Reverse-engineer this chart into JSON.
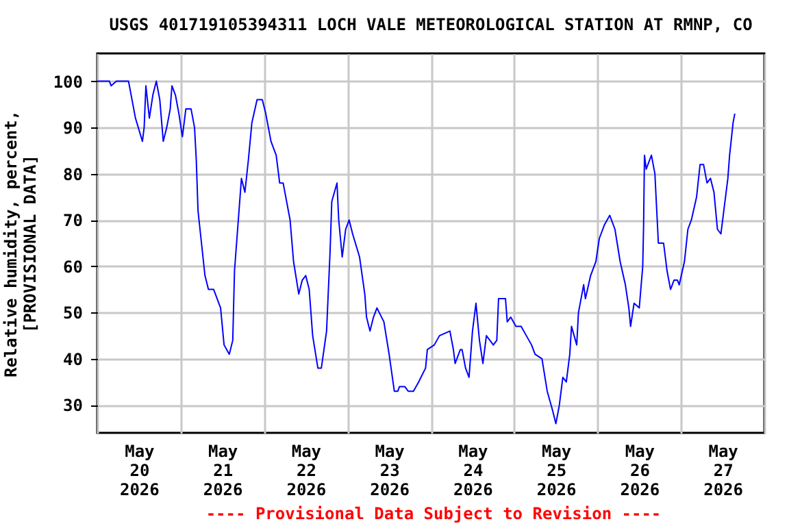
{
  "chart_data": {
    "type": "line",
    "title": "USGS 401719105394311 LOCH VALE METEOROLOGICAL STATION AT RMNP, CO",
    "ylabel": "Relative humidity, percent,\n[PROVISIONAL DATA]",
    "annotations": [
      "---- Provisional Data Subject to Revision ----"
    ],
    "xlim": [
      "2026-05-20T00:00",
      "2026-05-28T00:00"
    ],
    "xticks": [
      {
        "value": "2026-05-20T00:00",
        "label": null
      },
      {
        "value": "2026-05-20T12:00",
        "label": "May\n20\n2026"
      },
      {
        "value": "2026-05-21T00:00",
        "label": null
      },
      {
        "value": "2026-05-21T12:00",
        "label": "May\n21\n2026"
      },
      {
        "value": "2026-05-22T00:00",
        "label": null
      },
      {
        "value": "2026-05-22T12:00",
        "label": "May\n22\n2026"
      },
      {
        "value": "2026-05-23T00:00",
        "label": null
      },
      {
        "value": "2026-05-23T12:00",
        "label": "May\n23\n2026"
      },
      {
        "value": "2026-05-24T00:00",
        "label": null
      },
      {
        "value": "2026-05-24T12:00",
        "label": "May\n24\n2026"
      },
      {
        "value": "2026-05-25T00:00",
        "label": null
      },
      {
        "value": "2026-05-25T12:00",
        "label": "May\n25\n2026"
      },
      {
        "value": "2026-05-26T00:00",
        "label": null
      },
      {
        "value": "2026-05-26T12:00",
        "label": "May\n26\n2026"
      },
      {
        "value": "2026-05-27T00:00",
        "label": null
      },
      {
        "value": "2026-05-27T12:00",
        "label": "May\n27\n2026"
      },
      {
        "value": "2026-05-28T00:00",
        "label": null
      }
    ],
    "ylim": [
      24,
      106
    ],
    "yticks": [
      30,
      40,
      50,
      60,
      70,
      80,
      90,
      100
    ],
    "grid": true,
    "marker": "none",
    "line_style": "solid",
    "series": [
      {
        "color": "#0000ff",
        "x": [
          "2026-05-20T00:00",
          "2026-05-20T03:30",
          "2026-05-20T04:00",
          "2026-05-20T05:30",
          "2026-05-20T07:30",
          "2026-05-20T09:00",
          "2026-05-20T10:00",
          "2026-05-20T11:00",
          "2026-05-20T13:00",
          "2026-05-20T13:30",
          "2026-05-20T14:00",
          "2026-05-20T15:00",
          "2026-05-20T16:00",
          "2026-05-20T17:00",
          "2026-05-20T18:00",
          "2026-05-20T19:00",
          "2026-05-20T20:00",
          "2026-05-20T21:00",
          "2026-05-20T21:30",
          "2026-05-20T22:30",
          "2026-05-20T23:30",
          "2026-05-21T00:30",
          "2026-05-21T01:30",
          "2026-05-21T03:00",
          "2026-05-21T04:00",
          "2026-05-21T04:30",
          "2026-05-21T05:00",
          "2026-05-21T06:00",
          "2026-05-21T07:00",
          "2026-05-21T08:00",
          "2026-05-21T09:30",
          "2026-05-21T11:30",
          "2026-05-21T12:30",
          "2026-05-21T14:00",
          "2026-05-21T15:00",
          "2026-05-21T15:30",
          "2026-05-21T17:00",
          "2026-05-21T17:30",
          "2026-05-21T18:30",
          "2026-05-21T19:30",
          "2026-05-21T20:30",
          "2026-05-21T22:00",
          "2026-05-21T23:30",
          "2026-05-22T00:30",
          "2026-05-22T02:00",
          "2026-05-22T03:30",
          "2026-05-22T04:30",
          "2026-05-22T05:30",
          "2026-05-22T07:30",
          "2026-05-22T08:30",
          "2026-05-22T10:00",
          "2026-05-22T11:00",
          "2026-05-22T12:00",
          "2026-05-22T13:00",
          "2026-05-22T14:00",
          "2026-05-22T15:30",
          "2026-05-22T16:30",
          "2026-05-22T18:00",
          "2026-05-22T19:00",
          "2026-05-22T19:30",
          "2026-05-22T21:00",
          "2026-05-22T21:30",
          "2026-05-22T22:30",
          "2026-05-22T23:30",
          "2026-05-23T00:30",
          "2026-05-23T01:30",
          "2026-05-23T03:30",
          "2026-05-23T05:00",
          "2026-05-23T05:30",
          "2026-05-23T06:30",
          "2026-05-23T07:30",
          "2026-05-23T08:30",
          "2026-05-23T10:30",
          "2026-05-23T12:00",
          "2026-05-23T13:30",
          "2026-05-23T14:30",
          "2026-05-23T15:00",
          "2026-05-23T16:30",
          "2026-05-23T17:30",
          "2026-05-23T19:00",
          "2026-05-23T20:30",
          "2026-05-23T22:30",
          "2026-05-23T23:00",
          "2026-05-24T01:00",
          "2026-05-24T02:30",
          "2026-05-24T05:30",
          "2026-05-24T06:30",
          "2026-05-24T07:00",
          "2026-05-24T08:30",
          "2026-05-24T09:00",
          "2026-05-24T10:00",
          "2026-05-24T11:00",
          "2026-05-24T12:00",
          "2026-05-24T13:00",
          "2026-05-24T14:00",
          "2026-05-24T15:00",
          "2026-05-24T16:00",
          "2026-05-24T17:00",
          "2026-05-24T18:00",
          "2026-05-24T19:00",
          "2026-05-24T19:30",
          "2026-05-24T21:30",
          "2026-05-24T22:00",
          "2026-05-24T23:00",
          "2026-05-25T00:30",
          "2026-05-25T02:00",
          "2026-05-25T03:30",
          "2026-05-25T05:00",
          "2026-05-25T06:00",
          "2026-05-25T08:00",
          "2026-05-25T09:30",
          "2026-05-25T11:00",
          "2026-05-25T12:00",
          "2026-05-25T13:00",
          "2026-05-25T14:00",
          "2026-05-25T15:00",
          "2026-05-25T16:00",
          "2026-05-25T16:30",
          "2026-05-25T18:00",
          "2026-05-25T18:30",
          "2026-05-25T19:30",
          "2026-05-25T20:00",
          "2026-05-25T20:30",
          "2026-05-25T22:00",
          "2026-05-25T23:30",
          "2026-05-26T00:30",
          "2026-05-26T02:00",
          "2026-05-26T03:30",
          "2026-05-26T05:00",
          "2026-05-26T06:30",
          "2026-05-26T08:00",
          "2026-05-26T09:00",
          "2026-05-26T09:30",
          "2026-05-26T10:30",
          "2026-05-26T12:00",
          "2026-05-26T13:00",
          "2026-05-26T13:15",
          "2026-05-26T13:30",
          "2026-05-26T14:00",
          "2026-05-26T15:00",
          "2026-05-26T15:30",
          "2026-05-26T16:30",
          "2026-05-26T17:30",
          "2026-05-26T19:00",
          "2026-05-26T20:00",
          "2026-05-26T21:00",
          "2026-05-26T22:00",
          "2026-05-26T23:00",
          "2026-05-26T23:30",
          "2026-05-27T01:00",
          "2026-05-27T02:00",
          "2026-05-27T03:00",
          "2026-05-27T04:30",
          "2026-05-27T05:30",
          "2026-05-27T06:30",
          "2026-05-27T07:30",
          "2026-05-27T08:30",
          "2026-05-27T09:30",
          "2026-05-27T10:30",
          "2026-05-27T11:30",
          "2026-05-27T12:00",
          "2026-05-27T13:30",
          "2026-05-27T14:00",
          "2026-05-27T15:00",
          "2026-05-27T15:30"
        ],
        "values": [
          100,
          100,
          99,
          100,
          100,
          100,
          96,
          92,
          87,
          90,
          99,
          92,
          97,
          100,
          96,
          87,
          90,
          94,
          99,
          97,
          93,
          88,
          94,
          94,
          90,
          83,
          72,
          65,
          58,
          55,
          55,
          51,
          43,
          41,
          44,
          59,
          74,
          79,
          76,
          83,
          91,
          96,
          96,
          93,
          87,
          84,
          78,
          78,
          70,
          61,
          54,
          57,
          58,
          55,
          45,
          38,
          38,
          46,
          63,
          74,
          78,
          70,
          62,
          68,
          70,
          67,
          62,
          54,
          49,
          46,
          49,
          51,
          48,
          41,
          33,
          33,
          34,
          34,
          33,
          33,
          35,
          38,
          42,
          43,
          45,
          46,
          42,
          39,
          42,
          42,
          38,
          36,
          46,
          52,
          44,
          39,
          45,
          44,
          43,
          44,
          53,
          53,
          48,
          49,
          47,
          47,
          45,
          43,
          41,
          40,
          33,
          29,
          26,
          30,
          36,
          35,
          41,
          47,
          43,
          50,
          54,
          56,
          53,
          58,
          61,
          66,
          69,
          71,
          68,
          61,
          56,
          51,
          47,
          52,
          51,
          60,
          69,
          84,
          81,
          83,
          84,
          80,
          65,
          65,
          59,
          55,
          57,
          57,
          56,
          61,
          68,
          70,
          75,
          82,
          82,
          78,
          79,
          76,
          68,
          67,
          70,
          79,
          84,
          91,
          93
        ]
      }
    ]
  }
}
